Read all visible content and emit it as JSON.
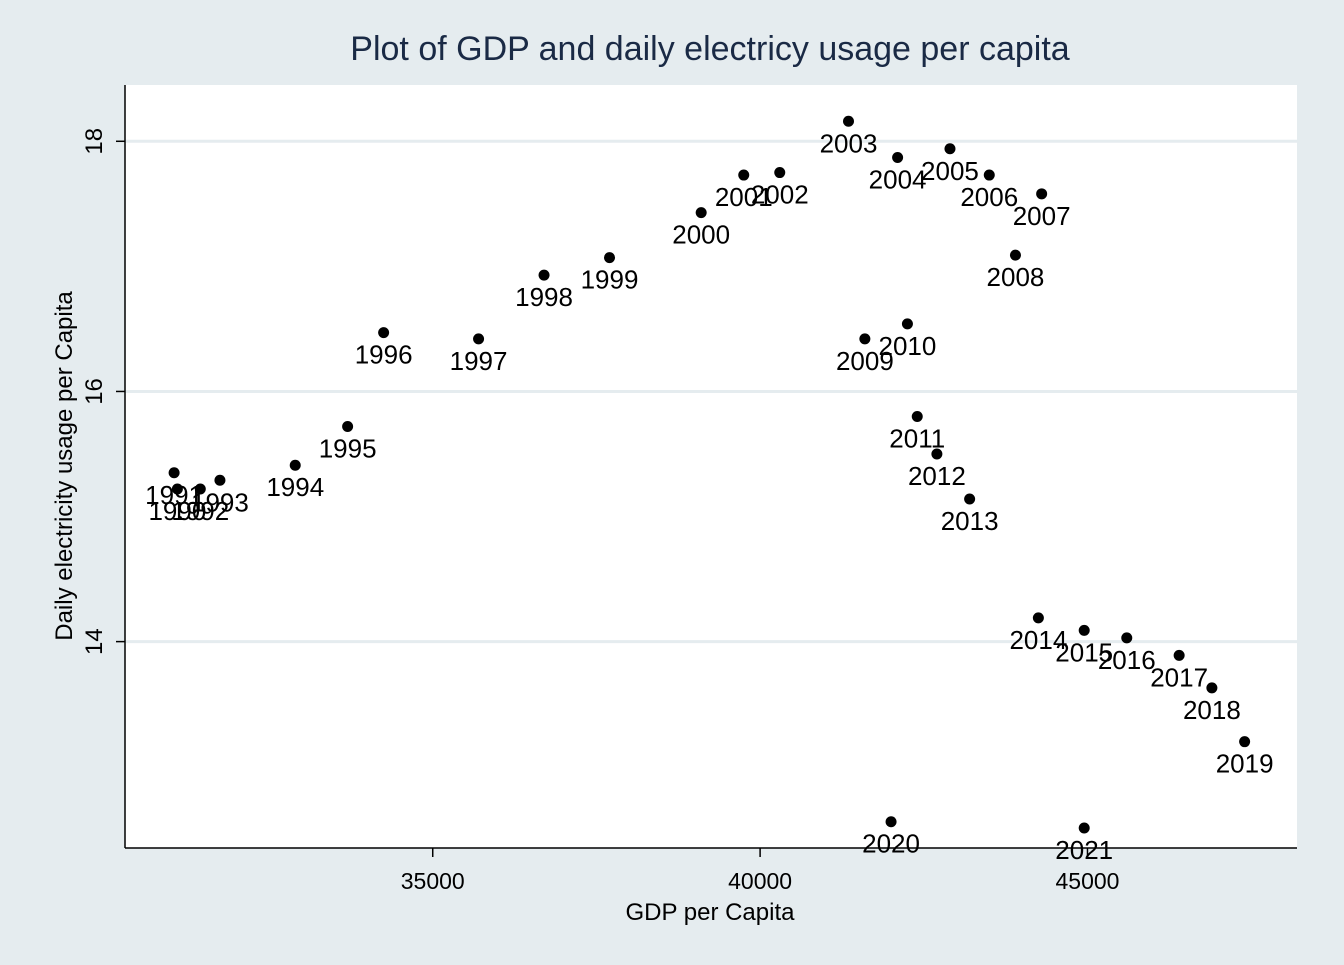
{
  "chart_data": {
    "type": "scatter",
    "title": "Plot of GDP and daily electricy usage per capita",
    "xlabel": "GDP per Capita",
    "ylabel": "Daily electricity usage per Capita",
    "xlim": [
      30300,
      48200
    ],
    "ylim": [
      12.35,
      18.45
    ],
    "xticks": [
      35000,
      40000,
      45000
    ],
    "yticks": [
      14,
      16,
      18
    ],
    "grid": "horizontal",
    "legend": "none",
    "colors": {
      "background": "#e5ecef",
      "plot_area": "#ffffff",
      "gridline": "#e5ecef",
      "marker": "#000000",
      "title": "#1a2a45",
      "text": "#000000"
    },
    "points": [
      {
        "label": "1990",
        "x": 31100,
        "y": 15.22
      },
      {
        "label": "1991",
        "x": 31050,
        "y": 15.35
      },
      {
        "label": "1992",
        "x": 31450,
        "y": 15.22
      },
      {
        "label": "1993",
        "x": 31750,
        "y": 15.29
      },
      {
        "label": "1994",
        "x": 32900,
        "y": 15.41
      },
      {
        "label": "1995",
        "x": 33700,
        "y": 15.72
      },
      {
        "label": "1996",
        "x": 34250,
        "y": 16.47
      },
      {
        "label": "1997",
        "x": 35700,
        "y": 16.42
      },
      {
        "label": "1998",
        "x": 36700,
        "y": 16.93
      },
      {
        "label": "1999",
        "x": 37700,
        "y": 17.07
      },
      {
        "label": "2000",
        "x": 39100,
        "y": 17.43
      },
      {
        "label": "2001",
        "x": 39750,
        "y": 17.73
      },
      {
        "label": "2002",
        "x": 40300,
        "y": 17.75
      },
      {
        "label": "2003",
        "x": 41350,
        "y": 18.16
      },
      {
        "label": "2004",
        "x": 42100,
        "y": 17.87
      },
      {
        "label": "2005",
        "x": 42900,
        "y": 17.94
      },
      {
        "label": "2006",
        "x": 43500,
        "y": 17.73
      },
      {
        "label": "2007",
        "x": 44300,
        "y": 17.58
      },
      {
        "label": "2008",
        "x": 43900,
        "y": 17.09
      },
      {
        "label": "2009",
        "x": 41600,
        "y": 16.42
      },
      {
        "label": "2010",
        "x": 42250,
        "y": 16.54
      },
      {
        "label": "2011",
        "x": 42400,
        "y": 15.8
      },
      {
        "label": "2012",
        "x": 42700,
        "y": 15.5
      },
      {
        "label": "2013",
        "x": 43200,
        "y": 15.14
      },
      {
        "label": "2014",
        "x": 44250,
        "y": 14.19
      },
      {
        "label": "2015",
        "x": 44950,
        "y": 14.09
      },
      {
        "label": "2016",
        "x": 45600,
        "y": 14.03
      },
      {
        "label": "2017",
        "x": 46400,
        "y": 13.89
      },
      {
        "label": "2018",
        "x": 46900,
        "y": 13.63
      },
      {
        "label": "2019",
        "x": 47400,
        "y": 13.2
      },
      {
        "label": "2020",
        "x": 42000,
        "y": 12.56
      },
      {
        "label": "2021",
        "x": 44950,
        "y": 12.51
      }
    ]
  }
}
